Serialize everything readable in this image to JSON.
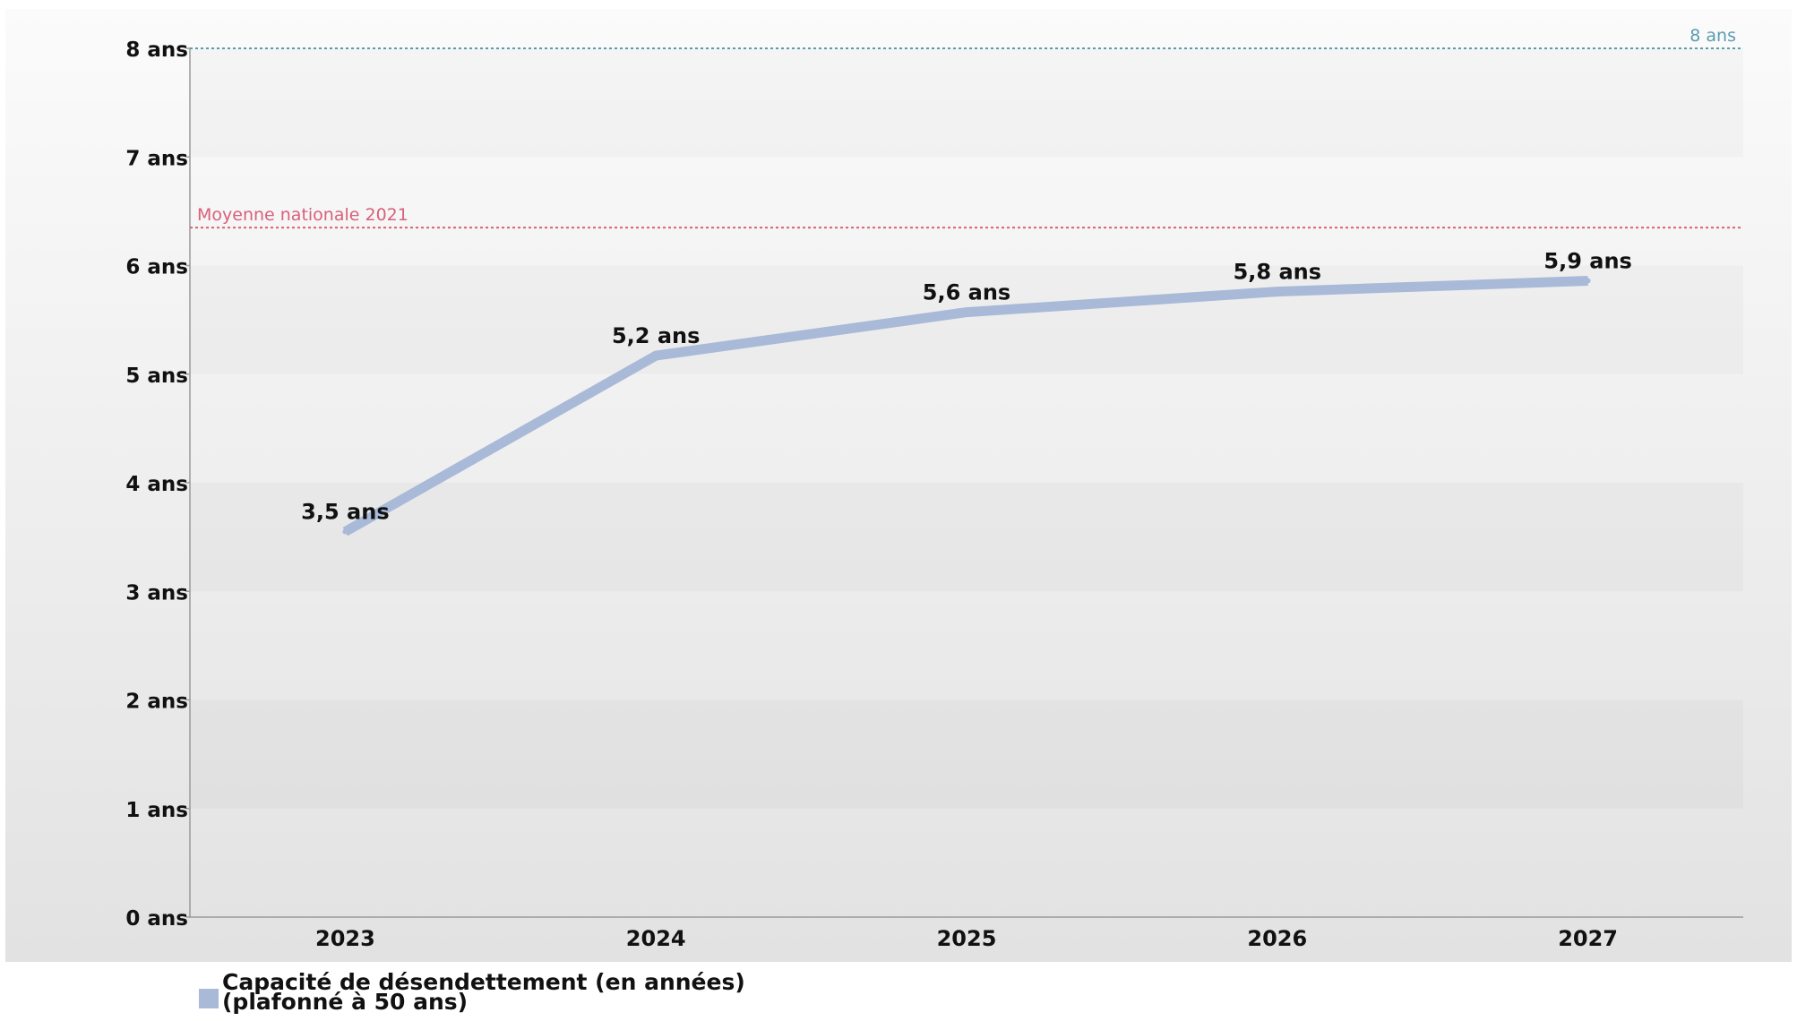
{
  "chart_data": {
    "type": "line",
    "categories": [
      "2023",
      "2024",
      "2025",
      "2026",
      "2027"
    ],
    "series": [
      {
        "name": "Capacité de désendettement (en années) (plafonné à 50 ans)",
        "values": [
          3.55,
          5.17,
          5.57,
          5.76,
          5.86
        ],
        "labels": [
          "3,5 ans",
          "5,2 ans",
          "5,6 ans",
          "5,8 ans",
          "5,9 ans"
        ],
        "color": "#a9b9d8"
      }
    ],
    "y_ticks": [
      {
        "value": 0,
        "label": "0 ans"
      },
      {
        "value": 1,
        "label": "1 ans"
      },
      {
        "value": 2,
        "label": "2 ans"
      },
      {
        "value": 3,
        "label": "3 ans"
      },
      {
        "value": 4,
        "label": "4 ans"
      },
      {
        "value": 5,
        "label": "5 ans"
      },
      {
        "value": 6,
        "label": "6 ans"
      },
      {
        "value": 7,
        "label": "7 ans"
      },
      {
        "value": 8,
        "label": "8 ans"
      }
    ],
    "ylim": [
      0,
      8
    ],
    "reference_lines": [
      {
        "value": 8,
        "label": "8 ans",
        "color": "#5a9bb0",
        "label_position": "right"
      },
      {
        "value": 6.35,
        "label": "Moyenne nationale 2021",
        "color": "#d9607a",
        "label_position": "left"
      }
    ],
    "grid": false,
    "legend_position": "bottom-left"
  },
  "legend": {
    "line1": "Capacité de désendettement (en années)",
    "line2": "(plafonné à 50 ans)"
  }
}
